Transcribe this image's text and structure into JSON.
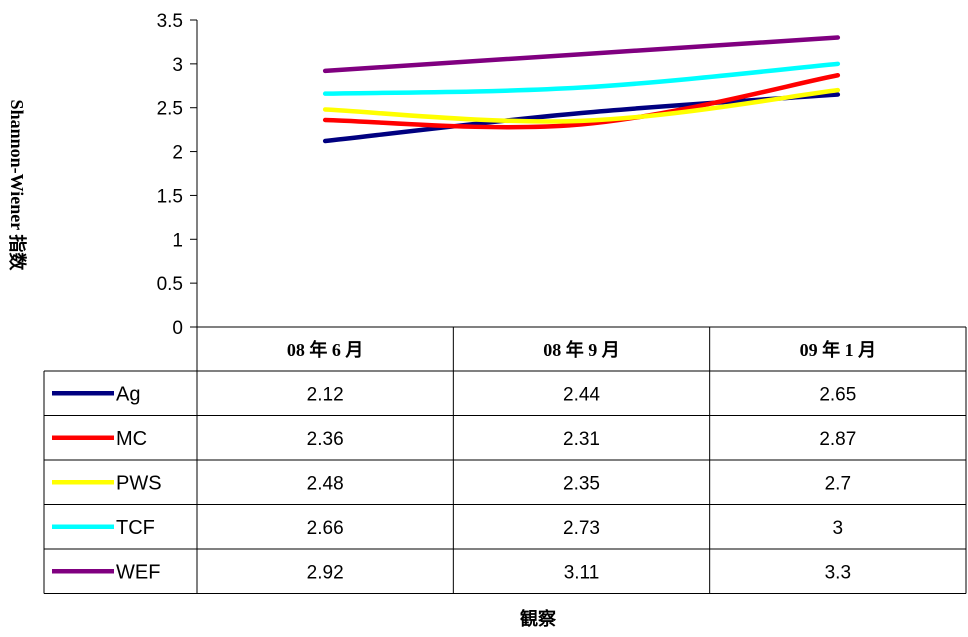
{
  "chart_data": {
    "type": "line",
    "ylabel": "Shannon-Wiener 指数",
    "xlabel": "観察",
    "categories": [
      "08 年 6 月",
      "08 年 9 月",
      "09 年 1 月"
    ],
    "ylim": [
      0,
      3.5
    ],
    "yticks": [
      "0",
      "0.5",
      "1",
      "1.5",
      "2",
      "2.5",
      "3",
      "3.5"
    ],
    "legend": "data-table-rows",
    "series": [
      {
        "name": "Ag",
        "values": [
          2.12,
          2.44,
          2.65
        ],
        "color": "#000080"
      },
      {
        "name": "MC",
        "values": [
          2.36,
          2.31,
          2.87
        ],
        "color": "#ff0000"
      },
      {
        "name": "PWS",
        "values": [
          2.48,
          2.35,
          2.7
        ],
        "color": "#ffff00"
      },
      {
        "name": "TCF",
        "values": [
          2.66,
          2.73,
          3
        ],
        "color": "#00ffff"
      },
      {
        "name": "WEF",
        "values": [
          2.92,
          3.11,
          3.3
        ],
        "color": "#800080"
      }
    ]
  }
}
